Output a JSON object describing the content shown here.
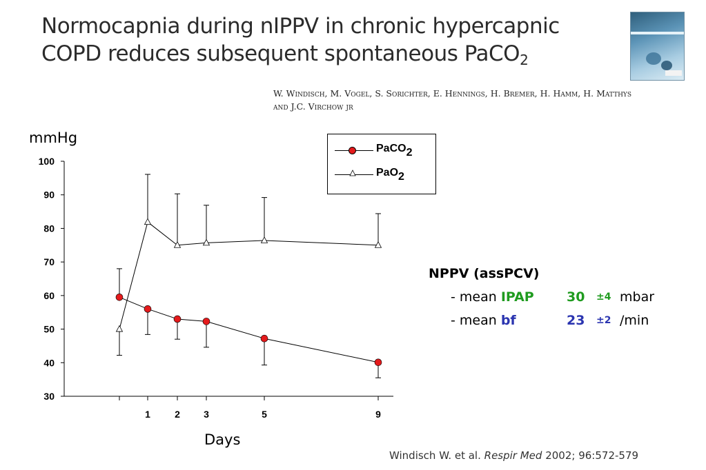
{
  "slide": {
    "title_line1": "Normocapnia during nIPPV in chronic hypercapnic",
    "title_line2_main": "COPD reduces subsequent spontaneous PaCO",
    "title_line2_sub": "2",
    "authors_line1": "W. Windisch, M. Vogel, S. Sorichter, E. Hennings, H. Bremer, H. Hamm, H. Matthys",
    "authors_line2": "and J.C. Virchow jr"
  },
  "nppv": {
    "heading": "NPPV (assPCV)",
    "row1": {
      "prefix": "- mean ",
      "param": "IPAP",
      "value": "30",
      "pm": "±4",
      "unit": "mbar"
    },
    "row2": {
      "prefix": "- mean ",
      "param": "bf",
      "value": "23",
      "pm": "±2",
      "unit": "/min"
    }
  },
  "citation": {
    "authors": "Windisch W. et al.",
    "journal": "Respir Med",
    "details": "2002; 96:572-579"
  },
  "chart_data": {
    "type": "line",
    "ylabel": "mmHg",
    "xlabel": "Days",
    "ylim": [
      30,
      100
    ],
    "yticks": [
      30,
      40,
      50,
      60,
      70,
      80,
      90,
      100
    ],
    "xtick_labels": [
      "",
      "1",
      "2",
      "3",
      "5",
      "9"
    ],
    "grid": false,
    "legend_position": "top-center",
    "series": [
      {
        "name": "PaCO",
        "name_sub": "2",
        "marker": "filled-circle",
        "color": "#e41a1c",
        "values": [
          59.5,
          56,
          53,
          52.3,
          47.2,
          40.1
        ],
        "error_bars": [
          {
            "from": 59.5,
            "to": 68
          },
          {
            "from": 56,
            "to": 48.4
          },
          {
            "from": 53,
            "to": 47
          },
          {
            "from": 52.3,
            "to": 44.6
          },
          {
            "from": 47.2,
            "to": 39.3
          },
          {
            "from": 40.1,
            "to": 35.5
          }
        ]
      },
      {
        "name": "PaO",
        "name_sub": "2",
        "marker": "open-triangle",
        "color": "#000000",
        "values": [
          50,
          81.9,
          75,
          75.7,
          76.4,
          75
        ],
        "error_bars": [
          {
            "from": 50,
            "to": 42.2
          },
          {
            "from": 81.9,
            "to": 96.1
          },
          {
            "from": 75,
            "to": 90.3
          },
          {
            "from": 75.7,
            "to": 86.9
          },
          {
            "from": 76.4,
            "to": 89.2
          },
          {
            "from": 75,
            "to": 84.4
          }
        ]
      }
    ]
  }
}
